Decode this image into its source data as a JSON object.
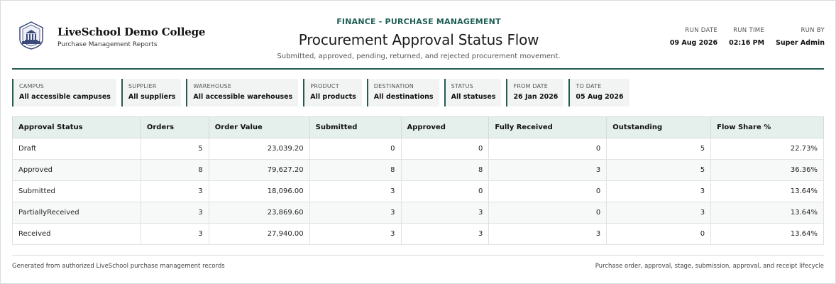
{
  "header": {
    "college": "LiveSchool Demo College",
    "reports_label": "Purchase Management Reports",
    "eyebrow": "FINANCE - PURCHASE MANAGEMENT",
    "title": "Procurement Approval Status Flow",
    "subtitle": "Submitted, approved, pending, returned, and rejected procurement movement."
  },
  "meta": {
    "run_date_label": "RUN DATE",
    "run_date": "09 Aug 2026",
    "run_time_label": "RUN TIME",
    "run_time": "02:16 PM",
    "run_by_label": "RUN BY",
    "run_by": "Super Admin"
  },
  "filters": [
    {
      "label": "CAMPUS",
      "value": "All accessible campuses"
    },
    {
      "label": "SUPPLIER",
      "value": "All suppliers"
    },
    {
      "label": "WAREHOUSE",
      "value": "All accessible warehouses"
    },
    {
      "label": "PRODUCT",
      "value": "All products"
    },
    {
      "label": "DESTINATION",
      "value": "All destinations"
    },
    {
      "label": "STATUS",
      "value": "All statuses"
    },
    {
      "label": "FROM DATE",
      "value": "26 Jan 2026"
    },
    {
      "label": "TO DATE",
      "value": "05 Aug 2026"
    }
  ],
  "table": {
    "columns": [
      "Approval Status",
      "Orders",
      "Order Value",
      "Submitted",
      "Approved",
      "Fully Received",
      "Outstanding",
      "Flow Share %"
    ],
    "rows": [
      [
        "Draft",
        "5",
        "23,039.20",
        "0",
        "0",
        "0",
        "5",
        "22.73%"
      ],
      [
        "Approved",
        "8",
        "79,627.20",
        "8",
        "8",
        "3",
        "5",
        "36.36%"
      ],
      [
        "Submitted",
        "3",
        "18,096.00",
        "3",
        "0",
        "0",
        "3",
        "13.64%"
      ],
      [
        "PartiallyReceived",
        "3",
        "23,869.60",
        "3",
        "3",
        "0",
        "3",
        "13.64%"
      ],
      [
        "Received",
        "3",
        "27,940.00",
        "3",
        "3",
        "3",
        "0",
        "13.64%"
      ]
    ]
  },
  "footer": {
    "left": "Generated from authorized LiveSchool purchase management records",
    "right": "Purchase order, approval, stage, submission, approval, and receipt lifecycle"
  },
  "colors": {
    "accent": "#245c52",
    "header_bg": "#e5efec",
    "eyebrow": "#1f5f55"
  },
  "icons": {
    "logo": "college-crest-icon"
  }
}
